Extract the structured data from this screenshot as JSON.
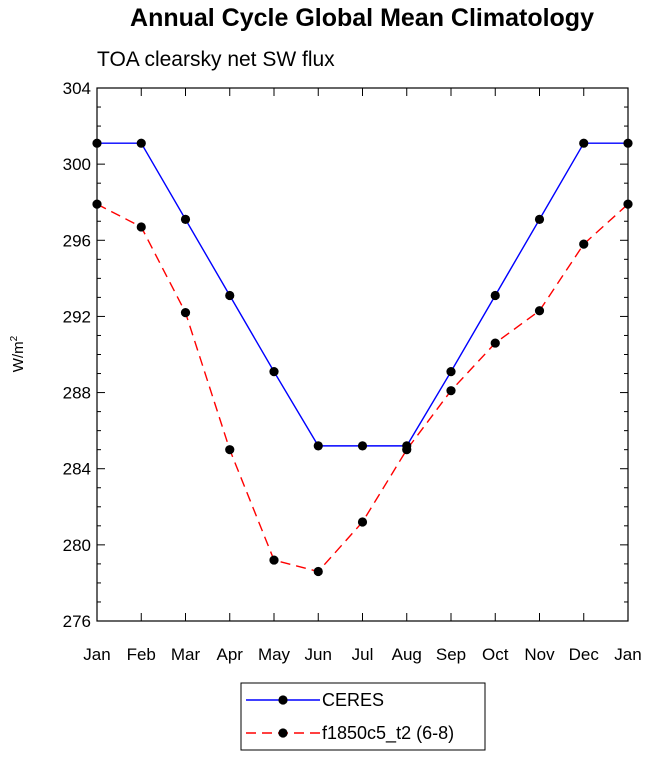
{
  "chart_data": {
    "type": "line",
    "title": "Annual Cycle Global Mean Climatology",
    "subtitle": "TOA clearsky net SW flux",
    "xlabel": "",
    "ylabel": "W/m",
    "ylabel_sup": "2",
    "categories": [
      "Jan",
      "Feb",
      "Mar",
      "Apr",
      "May",
      "Jun",
      "Jul",
      "Aug",
      "Sep",
      "Oct",
      "Nov",
      "Dec",
      "Jan"
    ],
    "ylim": [
      276,
      304
    ],
    "yticks": [
      276,
      280,
      284,
      288,
      292,
      296,
      300,
      304
    ],
    "yminor_step": 1,
    "grid": false,
    "legend_position": "bottom-center",
    "series": [
      {
        "name": "CERES",
        "color": "#0000ff",
        "line_style": "solid",
        "marker": "filled-circle",
        "values": [
          301.1,
          301.1,
          297.1,
          293.1,
          289.1,
          285.2,
          285.2,
          285.2,
          289.1,
          293.1,
          297.1,
          301.1,
          301.1
        ]
      },
      {
        "name": "f1850c5_t2 (6-8)",
        "color": "#ff0000",
        "line_style": "dashed",
        "marker": "filled-circle",
        "values": [
          297.9,
          296.7,
          292.2,
          285.0,
          279.2,
          278.6,
          281.2,
          285.0,
          288.1,
          290.6,
          292.3,
          295.8,
          297.9
        ]
      }
    ]
  }
}
